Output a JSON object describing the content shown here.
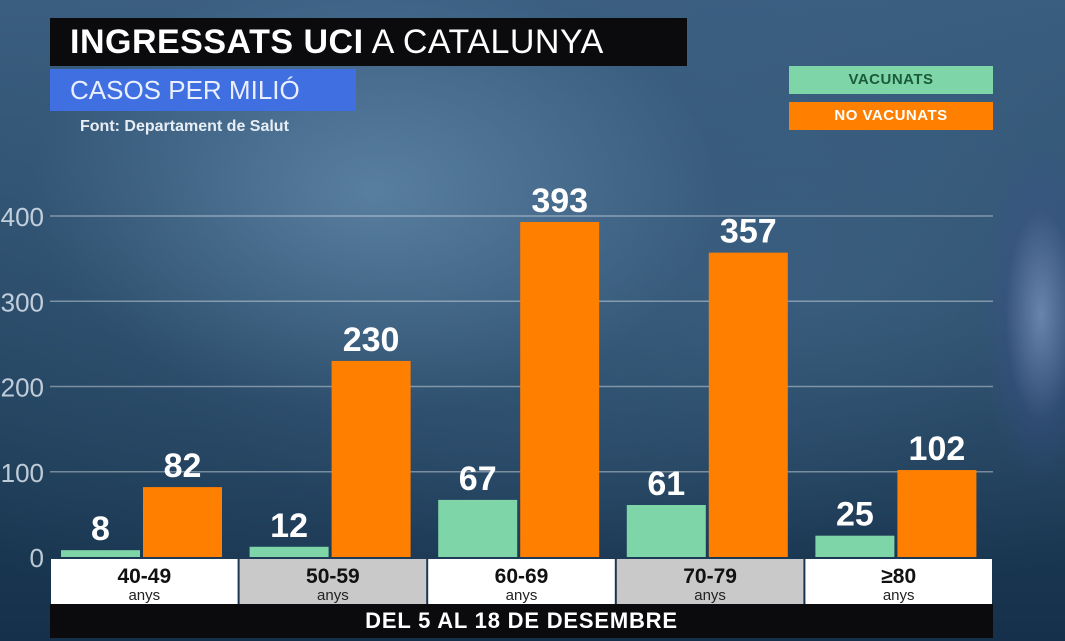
{
  "title": {
    "bold": "INGRESSATS UCI",
    "rest": "A CATALUNYA"
  },
  "subtitle": "CASOS PER MILIÓ",
  "source": "Font: Departament de Salut",
  "footer": "DEL 5 AL 18 DE DESEMBRE",
  "colors": {
    "vacunats": "#7ed6a8",
    "no_vacunats": "#ff7f00"
  },
  "chart_data": {
    "type": "bar",
    "categories": [
      "40-49",
      "50-59",
      "60-69",
      "70-79",
      "≥80"
    ],
    "category_sublabel": "anys",
    "series": [
      {
        "name": "VACUNATS",
        "values": [
          8,
          12,
          67,
          61,
          25
        ]
      },
      {
        "name": "NO VACUNATS",
        "values": [
          82,
          230,
          393,
          357,
          102
        ]
      }
    ],
    "ylim": [
      0,
      400
    ],
    "yticks": [
      "0",
      "100",
      "200",
      "300",
      "400"
    ],
    "grid": true,
    "legend": "top-right"
  }
}
